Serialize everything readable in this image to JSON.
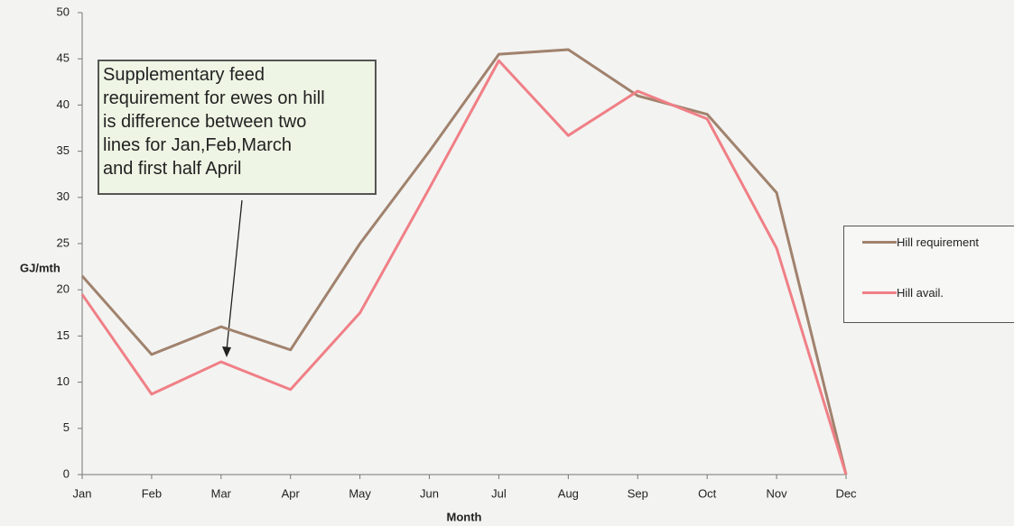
{
  "chart_data": {
    "type": "line",
    "categories": [
      "Jan",
      "Feb",
      "Mar",
      "Apr",
      "May",
      "Jun",
      "Jul",
      "Aug",
      "Sep",
      "Oct",
      "Nov",
      "Dec"
    ],
    "series": [
      {
        "name": "Hill requirement",
        "color": "#a0826d",
        "values": [
          21.5,
          13,
          16,
          13.5,
          25,
          35,
          45.5,
          46,
          41,
          39,
          30.5,
          0
        ]
      },
      {
        "name": "Hill avail.",
        "color": "#f07f86",
        "values": [
          19.5,
          8.7,
          12.2,
          9.2,
          17.5,
          31,
          44.8,
          36.7,
          41.5,
          38.5,
          24.5,
          0
        ]
      }
    ],
    "ylim": [
      0,
      50
    ],
    "yticks": [
      0,
      5,
      10,
      15,
      20,
      25,
      30,
      35,
      40,
      45,
      50
    ],
    "ylabel": "GJ/mth",
    "xlabel": "Month",
    "grid": false,
    "legend": "right",
    "annotation": [
      "Supplementary feed",
      "requirement for ewes on hill",
      "is difference between two",
      "lines for Jan,Feb,March",
      "and first half April"
    ]
  }
}
